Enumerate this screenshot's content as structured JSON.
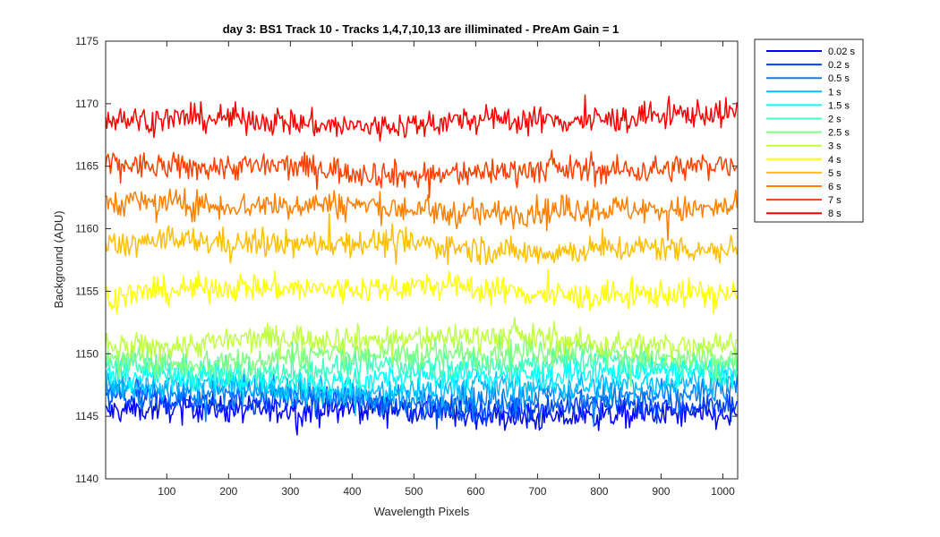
{
  "chart_data": {
    "type": "line",
    "title": "day 3: BS1  Track 10 - Tracks 1,4,7,10,13 are illiminated - PreAm Gain = 1",
    "xlabel": "Wavelength Pixels",
    "ylabel": "Background (ADU)",
    "xlim": [
      1,
      1024
    ],
    "ylim": [
      1140,
      1175
    ],
    "xticks": [
      100,
      200,
      300,
      400,
      500,
      600,
      700,
      800,
      900,
      1000
    ],
    "yticks": [
      1140,
      1145,
      1150,
      1155,
      1160,
      1165,
      1170,
      1175
    ],
    "grid": false,
    "legend_position": "outside-top-right",
    "series_shape": "noisy flat traces over x = 1..1024; each series fluctuates about its mean with a spread of roughly ±1.3 ADU",
    "series": [
      {
        "name": "0.02 s",
        "mean": 1145.3,
        "color": "#0000ff"
      },
      {
        "name": "0.2 s",
        "mean": 1146.0,
        "color": "#0040ff"
      },
      {
        "name": "0.5 s",
        "mean": 1146.7,
        "color": "#0080ff"
      },
      {
        "name": "1 s",
        "mean": 1147.4,
        "color": "#00bfff"
      },
      {
        "name": "1.5 s",
        "mean": 1148.2,
        "color": "#00ffff"
      },
      {
        "name": "2 s",
        "mean": 1149.0,
        "color": "#40ffbf"
      },
      {
        "name": "2.5 s",
        "mean": 1149.8,
        "color": "#80ff80"
      },
      {
        "name": "3 s",
        "mean": 1151.0,
        "color": "#bfff40"
      },
      {
        "name": "4 s",
        "mean": 1155.0,
        "color": "#ffff00"
      },
      {
        "name": "5 s",
        "mean": 1158.6,
        "color": "#ffbf00"
      },
      {
        "name": "6 s",
        "mean": 1161.7,
        "color": "#ff8000"
      },
      {
        "name": "7 s",
        "mean": 1164.8,
        "color": "#ff4000"
      },
      {
        "name": "8 s",
        "mean": 1168.7,
        "color": "#ff0000"
      }
    ]
  }
}
